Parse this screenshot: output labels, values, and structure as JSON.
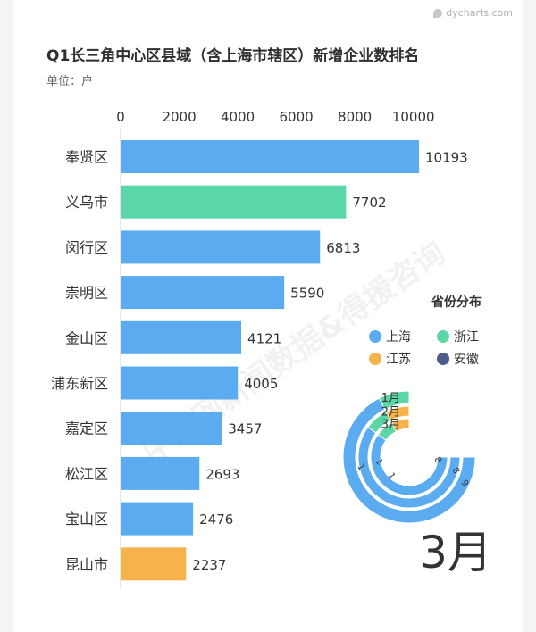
{
  "brand": {
    "text": "dycharts.com",
    "icon": "dycharts-logo-icon"
  },
  "title": "Q1长三角中心区县域（含上海市辖区）新增企业数排名",
  "unit": "单位：户",
  "colors": {
    "上海": "#5aabf0",
    "浙江": "#5bd6a6",
    "江苏": "#f6b24b",
    "安徽": "#4d5c8a"
  },
  "chart_data": [
    {
      "type": "bar",
      "orientation": "horizontal",
      "title": "Q1长三角中心区县域（含上海市辖区）新增企业数排名",
      "unit": "单位：户",
      "xlim": [
        0,
        10700
      ],
      "xticks": [
        0,
        2000,
        4000,
        6000,
        8000,
        10000
      ],
      "x_axis_position": "top",
      "categories": [
        "奉贤区",
        "义乌市",
        "闵行区",
        "崇明区",
        "金山区",
        "浦东新区",
        "嘉定区",
        "松江区",
        "宝山区",
        "昆山市"
      ],
      "values": [
        10193,
        7702,
        6813,
        5590,
        4121,
        4005,
        3457,
        2693,
        2476,
        2237
      ],
      "province": [
        "上海",
        "浙江",
        "上海",
        "上海",
        "上海",
        "上海",
        "上海",
        "上海",
        "上海",
        "江苏"
      ]
    },
    {
      "type": "pie",
      "variant": "concentric-rings",
      "title": "省份分布",
      "legend": [
        "上海",
        "浙江",
        "江苏",
        "安徽"
      ],
      "legend_placement": "right",
      "rings": [
        {
          "label": "1月",
          "values": {
            "上海": 9,
            "浙江": 1,
            "江苏": 0,
            "安徽": 0
          }
        },
        {
          "label": "2月",
          "values": {
            "上海": 8,
            "浙江": 1,
            "江苏": 1,
            "安徽": 0
          }
        },
        {
          "label": "3月",
          "values": {
            "上海": 8,
            "浙江": 1,
            "江苏": 1,
            "安徽": 0
          }
        }
      ],
      "ring_value_labels": [
        "9",
        "8",
        "8",
        "1",
        "1",
        "1"
      ],
      "current_month": "3月"
    }
  ]
}
